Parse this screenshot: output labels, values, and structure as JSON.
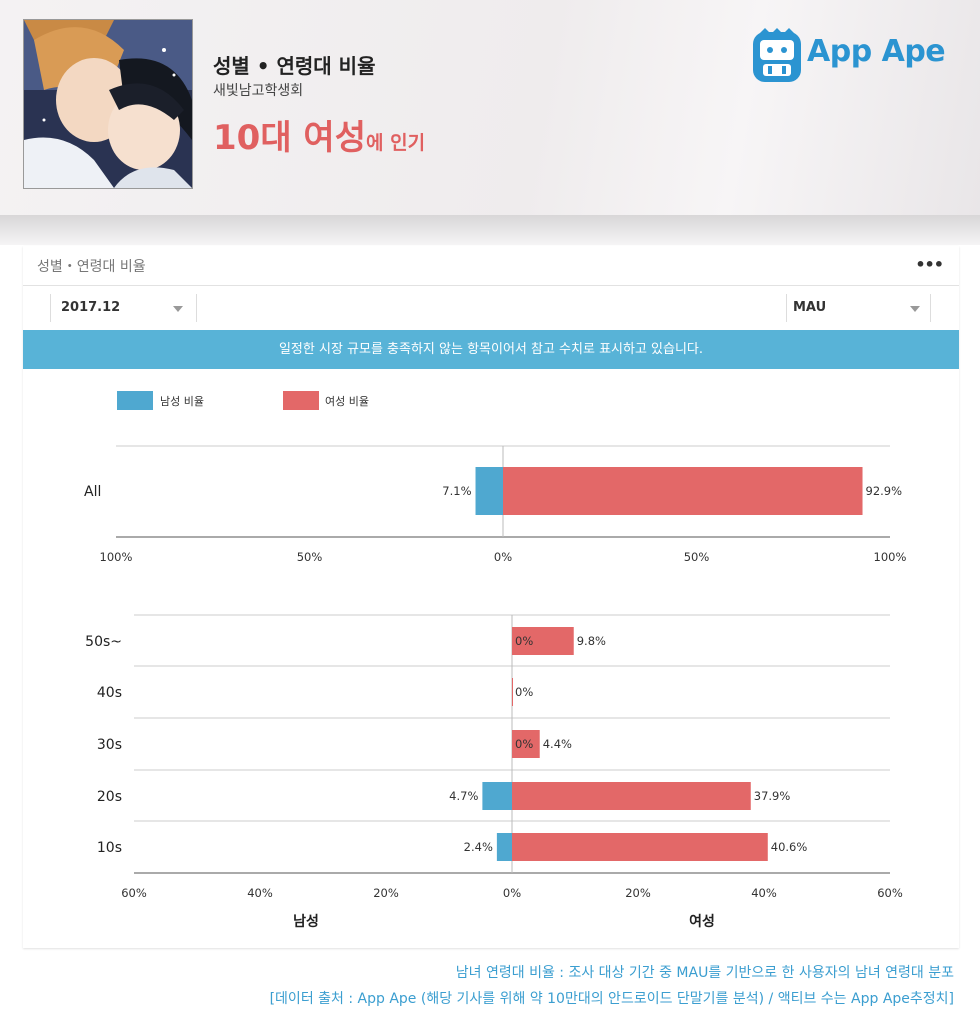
{
  "header": {
    "title": "성별 • 연령대 비율",
    "subtitle": "새빛남고학생회",
    "highlight_big": "10대 여성",
    "highlight_small": "에 인기",
    "logo_text": "App Ape"
  },
  "card": {
    "title": "성별・연령대 비율",
    "more_label": "•••",
    "period_select": "2017.12",
    "metric_select": "MAU",
    "banner": "일정한 시장 규모를 충족하지 않는 항목이어서 참고 수치로 표시하고 있습니다."
  },
  "chart_data": [
    {
      "type": "bar",
      "orientation": "horizontal-diverging",
      "categories": [
        "All"
      ],
      "series": [
        {
          "name": "남성 비율",
          "color": "#4fa8d0",
          "values": [
            7.1
          ],
          "labels": [
            "7.1%"
          ]
        },
        {
          "name": "여성 비율",
          "color": "#e36868",
          "values": [
            92.9
          ],
          "labels": [
            "92.9%"
          ]
        }
      ],
      "xlim": [
        -100,
        100
      ],
      "xticks": [
        "100%",
        "50%",
        "0%",
        "50%",
        "100%"
      ],
      "legend": "top-left"
    },
    {
      "type": "bar",
      "orientation": "horizontal-diverging",
      "categories": [
        "50s~",
        "40s",
        "30s",
        "20s",
        "10s"
      ],
      "series": [
        {
          "name": "남성",
          "color": "#4fa8d0",
          "values": [
            0,
            0,
            0,
            4.7,
            2.4
          ],
          "labels": [
            "0%",
            "0%",
            "0%",
            "4.7%",
            "2.4%"
          ]
        },
        {
          "name": "여성",
          "color": "#e36868",
          "values": [
            9.8,
            0,
            4.4,
            37.9,
            40.6
          ],
          "labels": [
            "9.8%",
            "",
            "4.4%",
            "37.9%",
            "40.6%"
          ]
        }
      ],
      "xlim": [
        -60,
        60
      ],
      "xticks": [
        "60%",
        "40%",
        "20%",
        "0%",
        "20%",
        "40%",
        "60%"
      ],
      "xlabel_left": "남성",
      "xlabel_right": "여성"
    }
  ],
  "footer": {
    "line1": "남녀 연령대 비율 : 조사 대상 기간 중 MAU를 기반으로 한 사용자의 남녀 연령대 분포",
    "line2": "[데이터 출처 : App Ape (해당 기사를 위해 약 10만대의 안드로이드 단말기를 분석) / 액티브 수는 App Ape추정치]"
  },
  "colors": {
    "male": "#4fa8d0",
    "female": "#e36868",
    "accent": "#e06060",
    "banner": "#58b3d7",
    "brand": "#2b94d1"
  }
}
